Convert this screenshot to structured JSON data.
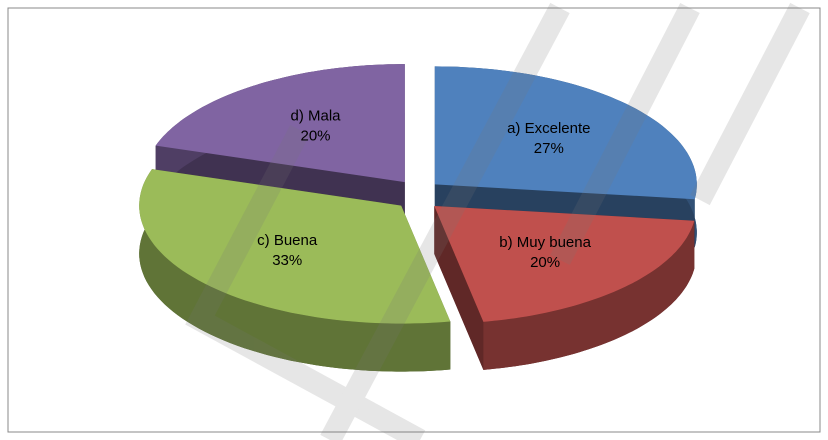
{
  "chart_data": {
    "type": "pie",
    "categories": [
      "a) Excelente",
      "b) Muy buena",
      "c) Buena",
      "d) Mala"
    ],
    "values": [
      27,
      20,
      33,
      20
    ],
    "value_labels": [
      "27%",
      "20%",
      "33%",
      "20%"
    ],
    "colors": [
      "#4f81bd",
      "#c0504d",
      "#9bbb59",
      "#8064a2"
    ]
  }
}
